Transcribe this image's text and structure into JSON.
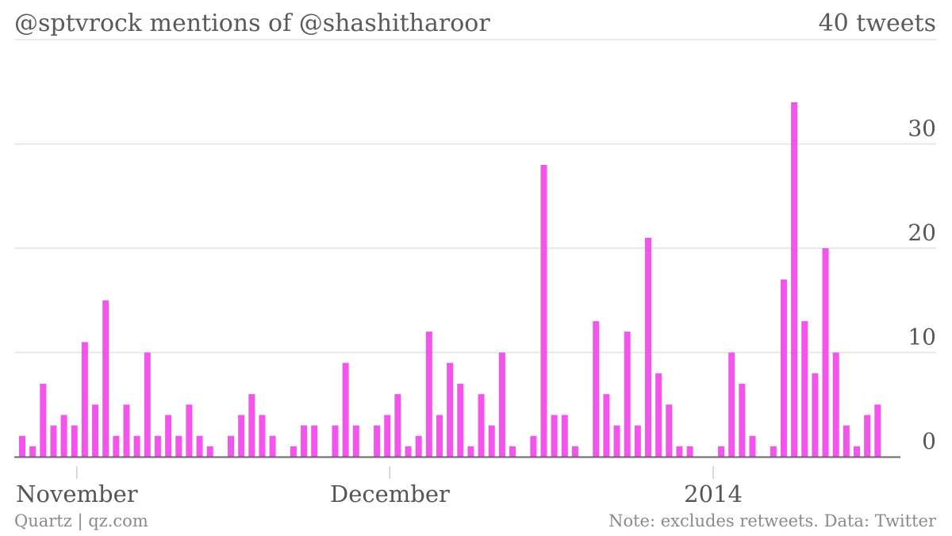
{
  "header": {
    "title": "@sptvrock mentions of @shashitharoor",
    "count": "40 tweets"
  },
  "footer": {
    "source": "Quartz | qz.com",
    "note": "Note: excludes retweets. Data: Twitter"
  },
  "colors": {
    "bar": "#f355ec",
    "grid": "#e2e2e2",
    "axis": "#666666"
  },
  "chart_data": {
    "type": "bar",
    "title": "@sptvrock mentions of @shashitharoor",
    "xlabel": "",
    "ylabel": "",
    "ylim": [
      0,
      34
    ],
    "y_ticks": [
      0,
      10,
      20,
      30
    ],
    "x_tick_labels": [
      "November",
      "December",
      "2014"
    ],
    "grid": true,
    "categories": [
      "2013-10-26",
      "2013-10-27",
      "2013-10-28",
      "2013-10-29",
      "2013-10-30",
      "2013-10-31",
      "2013-11-01",
      "2013-11-02",
      "2013-11-03",
      "2013-11-04",
      "2013-11-05",
      "2013-11-06",
      "2013-11-07",
      "2013-11-08",
      "2013-11-09",
      "2013-11-10",
      "2013-11-11",
      "2013-11-12",
      "2013-11-13",
      "2013-11-14",
      "2013-11-15",
      "2013-11-16",
      "2013-11-17",
      "2013-11-18",
      "2013-11-19",
      "2013-11-20",
      "2013-11-21",
      "2013-11-22",
      "2013-11-23",
      "2013-11-24",
      "2013-11-25",
      "2013-11-26",
      "2013-11-27",
      "2013-11-28",
      "2013-11-29",
      "2013-11-30",
      "2013-12-01",
      "2013-12-02",
      "2013-12-03",
      "2013-12-04",
      "2013-12-05",
      "2013-12-06",
      "2013-12-07",
      "2013-12-08",
      "2013-12-09",
      "2013-12-10",
      "2013-12-11",
      "2013-12-12",
      "2013-12-13",
      "2013-12-14",
      "2013-12-15",
      "2013-12-16",
      "2013-12-17",
      "2013-12-18",
      "2013-12-19",
      "2013-12-20",
      "2013-12-21",
      "2013-12-22",
      "2013-12-23",
      "2013-12-24",
      "2013-12-25",
      "2013-12-26",
      "2013-12-27",
      "2013-12-28",
      "2013-12-29",
      "2013-12-30",
      "2013-12-31",
      "2014-01-01",
      "2014-01-02",
      "2014-01-03",
      "2014-01-04",
      "2014-01-05",
      "2014-01-06",
      "2014-01-07",
      "2014-01-08",
      "2014-01-09",
      "2014-01-10",
      "2014-01-11",
      "2014-01-12",
      "2014-01-13",
      "2014-01-14",
      "2014-01-15",
      "2014-01-16",
      "2014-01-17",
      "2014-01-18"
    ],
    "values": [
      2,
      1,
      7,
      3,
      4,
      3,
      11,
      5,
      15,
      2,
      5,
      2,
      10,
      2,
      4,
      2,
      5,
      2,
      1,
      0,
      2,
      4,
      6,
      4,
      2,
      0,
      1,
      3,
      3,
      0,
      3,
      9,
      3,
      0,
      3,
      4,
      6,
      1,
      2,
      12,
      4,
      9,
      7,
      1,
      6,
      3,
      10,
      1,
      0,
      2,
      28,
      4,
      4,
      1,
      0,
      13,
      6,
      3,
      12,
      3,
      21,
      8,
      5,
      1,
      1,
      0,
      0,
      1,
      10,
      7,
      2,
      0,
      1,
      17,
      34,
      13,
      8,
      20,
      10,
      3,
      1,
      4,
      5,
      0,
      0
    ]
  }
}
